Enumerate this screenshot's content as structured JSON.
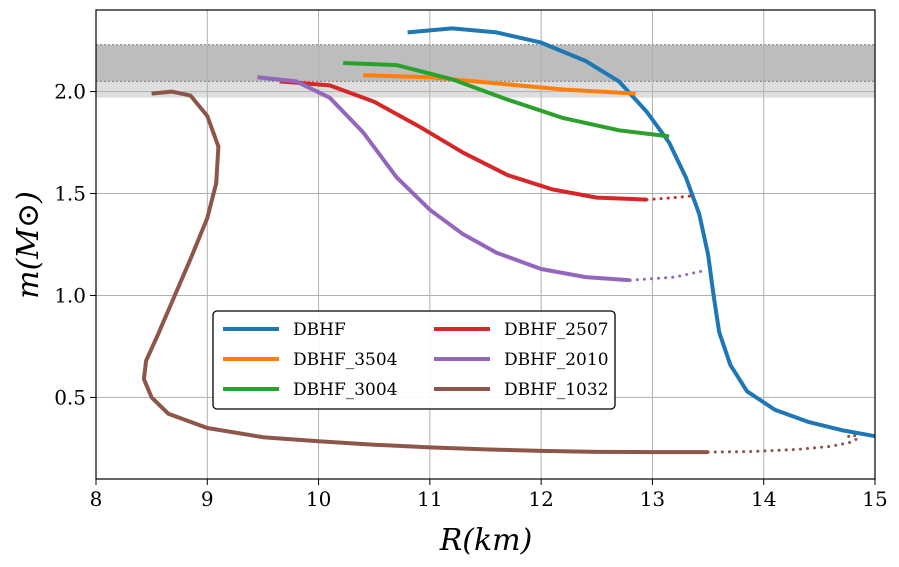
{
  "chart_data": {
    "type": "line",
    "xlabel": "R(km)",
    "ylabel": "m(M⊙)",
    "xlim": [
      8,
      15
    ],
    "ylim": [
      0.1,
      2.4
    ],
    "xticks": [
      8,
      9,
      10,
      11,
      12,
      13,
      14,
      15
    ],
    "yticks": [
      0.5,
      1.0,
      1.5,
      2.0
    ],
    "xtick_labels": [
      "8",
      "9",
      "10",
      "11",
      "12",
      "13",
      "14",
      "15"
    ],
    "ytick_labels": [
      "0.5",
      "1.0",
      "1.5",
      "2.0"
    ],
    "grid": true,
    "legend_position": "lower-center",
    "bands": [
      {
        "ymin": 2.05,
        "ymax": 2.23,
        "color": "#bdbdbd"
      },
      {
        "ymin": 1.97,
        "ymax": 2.05,
        "color": "#dedede"
      }
    ],
    "series": [
      {
        "name": "DBHF",
        "color": "#1f77b4",
        "solid": [
          [
            10.8,
            2.29
          ],
          [
            11.2,
            2.31
          ],
          [
            11.6,
            2.29
          ],
          [
            12.0,
            2.24
          ],
          [
            12.4,
            2.15
          ],
          [
            12.7,
            2.05
          ],
          [
            12.95,
            1.9
          ],
          [
            13.15,
            1.75
          ],
          [
            13.3,
            1.58
          ],
          [
            13.42,
            1.4
          ],
          [
            13.5,
            1.2
          ],
          [
            13.55,
            1.0
          ],
          [
            13.6,
            0.82
          ],
          [
            13.7,
            0.66
          ],
          [
            13.85,
            0.53
          ],
          [
            14.1,
            0.44
          ],
          [
            14.4,
            0.38
          ],
          [
            14.7,
            0.34
          ],
          [
            15.0,
            0.31
          ]
        ],
        "dotted": []
      },
      {
        "name": "DBHF_3504",
        "color": "#ff7f0e",
        "solid": [
          [
            10.4,
            2.08
          ],
          [
            11.0,
            2.07
          ],
          [
            11.6,
            2.04
          ],
          [
            12.2,
            2.01
          ],
          [
            12.85,
            1.99
          ]
        ],
        "dotted": []
      },
      {
        "name": "DBHF_3004",
        "color": "#2ca02c",
        "solid": [
          [
            10.22,
            2.14
          ],
          [
            10.7,
            2.13
          ],
          [
            11.2,
            2.06
          ],
          [
            11.7,
            1.96
          ],
          [
            12.2,
            1.87
          ],
          [
            12.7,
            1.81
          ],
          [
            13.15,
            1.78
          ]
        ],
        "dotted": []
      },
      {
        "name": "DBHF_2507",
        "color": "#d62728",
        "solid": [
          [
            9.65,
            2.05
          ],
          [
            10.1,
            2.03
          ],
          [
            10.5,
            1.95
          ],
          [
            10.9,
            1.83
          ],
          [
            11.3,
            1.7
          ],
          [
            11.7,
            1.59
          ],
          [
            12.1,
            1.52
          ],
          [
            12.5,
            1.48
          ],
          [
            12.95,
            1.47
          ]
        ],
        "dotted": [
          [
            12.95,
            1.47
          ],
          [
            13.2,
            1.48
          ],
          [
            13.38,
            1.49
          ]
        ]
      },
      {
        "name": "DBHF_2010",
        "color": "#9467bd",
        "solid": [
          [
            9.45,
            2.07
          ],
          [
            9.8,
            2.05
          ],
          [
            10.1,
            1.97
          ],
          [
            10.4,
            1.8
          ],
          [
            10.7,
            1.58
          ],
          [
            11.0,
            1.42
          ],
          [
            11.3,
            1.3
          ],
          [
            11.6,
            1.21
          ],
          [
            12.0,
            1.13
          ],
          [
            12.4,
            1.09
          ],
          [
            12.8,
            1.075
          ]
        ],
        "dotted": [
          [
            12.8,
            1.075
          ],
          [
            13.2,
            1.09
          ],
          [
            13.45,
            1.12
          ]
        ]
      },
      {
        "name": "DBHF_1032",
        "color": "#8c564b",
        "solid": [
          [
            8.5,
            1.99
          ],
          [
            8.68,
            2.0
          ],
          [
            8.85,
            1.98
          ],
          [
            9.0,
            1.88
          ],
          [
            9.1,
            1.73
          ],
          [
            9.08,
            1.55
          ],
          [
            9.0,
            1.38
          ],
          [
            8.85,
            1.18
          ],
          [
            8.7,
            0.99
          ],
          [
            8.55,
            0.8
          ],
          [
            8.45,
            0.68
          ],
          [
            8.43,
            0.59
          ],
          [
            8.5,
            0.5
          ],
          [
            8.65,
            0.42
          ],
          [
            9.0,
            0.35
          ],
          [
            9.5,
            0.305
          ],
          [
            10.0,
            0.285
          ],
          [
            10.5,
            0.268
          ],
          [
            11.0,
            0.255
          ],
          [
            11.5,
            0.245
          ],
          [
            12.0,
            0.238
          ],
          [
            12.5,
            0.233
          ],
          [
            13.0,
            0.232
          ],
          [
            13.5,
            0.232
          ]
        ],
        "dotted": [
          [
            13.5,
            0.232
          ],
          [
            13.9,
            0.235
          ],
          [
            14.3,
            0.245
          ],
          [
            14.6,
            0.26
          ],
          [
            14.78,
            0.28
          ],
          [
            14.85,
            0.3
          ],
          [
            14.8,
            0.32
          ],
          [
            14.75,
            0.305
          ]
        ]
      }
    ]
  }
}
